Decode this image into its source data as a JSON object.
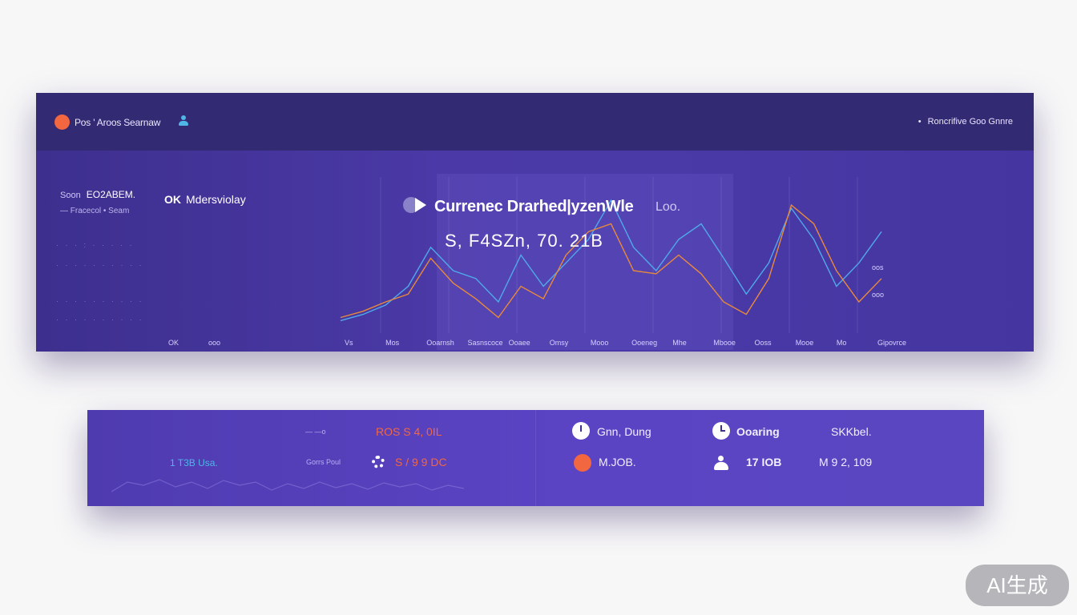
{
  "header": {
    "app_title": "Pos ' Aroos Searnaw",
    "right_text": "Roncrifive Goo Gnnre",
    "right_prefix": "•"
  },
  "left_panel": {
    "meta_label": "Soon",
    "meta_value": "EO2ABEM.",
    "meta2": "— Fracecol • Seam",
    "ok_prefix": "OK",
    "ok_label": "Mdersviolay",
    "bottom_tick_1": "OK",
    "bottom_tick_2": "ooo"
  },
  "chart": {
    "title": "Currenec Drarhed|yzenWle",
    "loc_text": "Loo.",
    "value": "S, F4SZn, 70. 21B",
    "y_ticks": [
      "oos",
      "ooo"
    ],
    "x_labels": [
      "Vs",
      "Mos",
      "Ooarnsh",
      "Sasnscoce",
      "Ooaee",
      "Omsy",
      "Mooo",
      "Ooeneg",
      "Mhe",
      "Mbooe",
      "Ooss",
      "Mooe",
      "Mo",
      "Gipovrce"
    ]
  },
  "chart_data": {
    "type": "line",
    "series": [
      {
        "values": [
          8,
          12,
          18,
          30,
          55,
          40,
          35,
          20,
          50,
          30,
          45,
          60,
          85,
          55,
          40,
          60,
          70,
          48,
          25,
          45,
          80,
          60,
          30,
          45,
          65
        ]
      },
      {
        "values": [
          10,
          14,
          20,
          25,
          48,
          32,
          22,
          10,
          30,
          22,
          50,
          65,
          70,
          40,
          38,
          50,
          38,
          20,
          12,
          35,
          82,
          70,
          40,
          20,
          35
        ]
      }
    ],
    "colors": [
      "#4fa9ea",
      "#e98a3a"
    ]
  },
  "bottom_panel": {
    "left_label_1": "— —o",
    "left_value_1": "ROS S 4, 0IL",
    "left_small_1": "1 T3B Usa.",
    "left_label_2": "Gorrs Poul",
    "left_value_2": "S / 9 9 DC",
    "right_stat_1": "Gnn, Dung",
    "right_stat_2": "Ooaring",
    "right_stat_3": "SKKbel.",
    "right_value_1": "M.JOB.",
    "right_value_2": "17 IOB",
    "right_value_3": "M 9 2, 109"
  },
  "badge": {
    "text": "AI生成"
  }
}
